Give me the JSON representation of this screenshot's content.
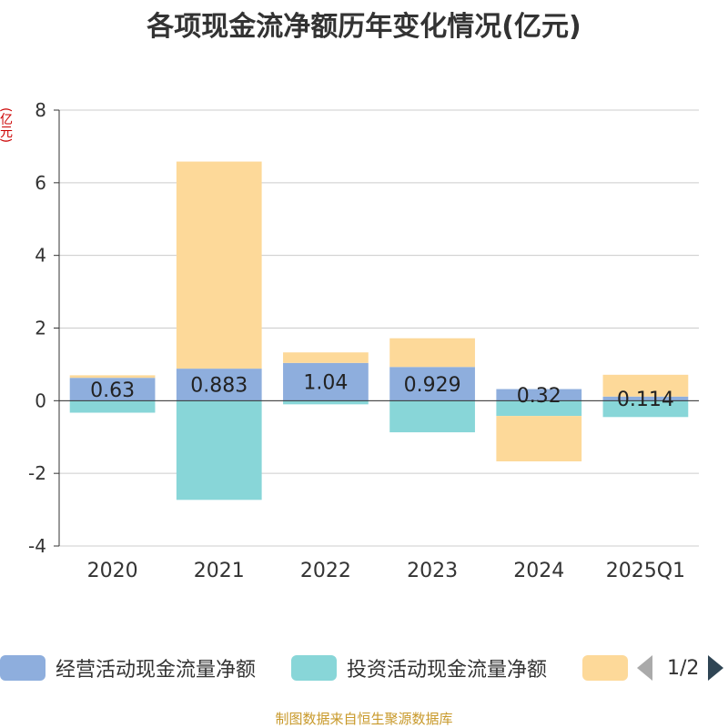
{
  "title": "各项现金流净额历年变化情况(亿元)",
  "unit_label": "(亿元)",
  "source": "制图数据来自恒生聚源数据库",
  "legend_page": "1/2",
  "chart_data": {
    "type": "bar",
    "stacked": true,
    "categories": [
      "2020",
      "2021",
      "2022",
      "2023",
      "2024",
      "2025Q1"
    ],
    "ylim": [
      -4,
      8
    ],
    "yticks": [
      -4,
      -2,
      0,
      2,
      4,
      6,
      8
    ],
    "grid": true,
    "legend_placement": "bottom",
    "series": [
      {
        "name": "经营活动现金流量净额",
        "color": "#8eaedd",
        "values": [
          0.63,
          0.883,
          1.04,
          0.929,
          0.32,
          0.114
        ],
        "labels": [
          "0.63",
          "0.883",
          "1.04",
          "0.929",
          "0.32",
          "0.114"
        ]
      },
      {
        "name": "投资活动现金流量净额",
        "color": "#88d6d8",
        "values": [
          -0.33,
          -2.73,
          -0.1,
          -0.87,
          -0.42,
          -0.45
        ]
      },
      {
        "name": "",
        "color": "#fdd999",
        "values": [
          0.07,
          5.7,
          0.29,
          0.79,
          -1.25,
          0.6
        ]
      }
    ]
  }
}
